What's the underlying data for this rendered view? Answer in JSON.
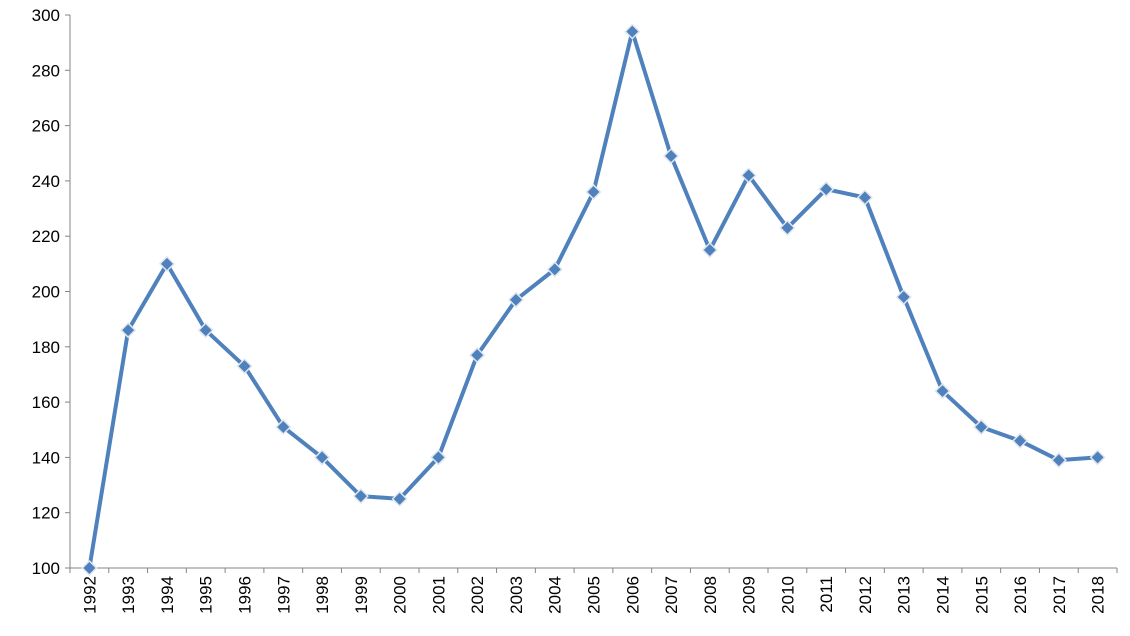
{
  "chart_data": {
    "type": "line",
    "categories": [
      "1992",
      "1993",
      "1994",
      "1995",
      "1996",
      "1997",
      "1998",
      "1999",
      "2000",
      "2001",
      "2002",
      "2003",
      "2004",
      "2005",
      "2006",
      "2007",
      "2008",
      "2009",
      "2010",
      "2011",
      "2012",
      "2013",
      "2014",
      "2015",
      "2016",
      "2017",
      "2018"
    ],
    "values": [
      100,
      186,
      210,
      186,
      173,
      151,
      140,
      126,
      125,
      140,
      177,
      197,
      208,
      236,
      294,
      249,
      215,
      242,
      223,
      237,
      234,
      198,
      164,
      151,
      146,
      139,
      140
    ],
    "color": "#4f81bd",
    "ylim": [
      100,
      300
    ],
    "yticks": [
      100,
      120,
      140,
      160,
      180,
      200,
      220,
      240,
      260,
      280,
      300
    ],
    "grid": false
  }
}
